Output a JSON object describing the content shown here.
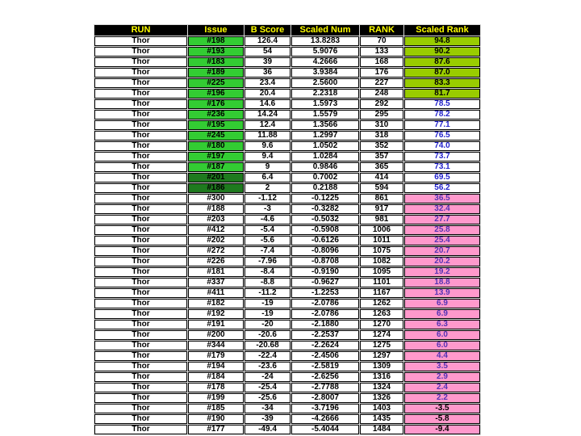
{
  "slide": {
    "background_color": "#ffffff"
  },
  "chart_data": {
    "type": "table",
    "columns": [
      "RUN",
      "Issue",
      "B Score",
      "Scaled Num",
      "RANK",
      "Scaled Rank"
    ],
    "header_style": {
      "background": "#000000",
      "text_color": "#ffff00"
    },
    "colors": {
      "issue_green": "#33cc33",
      "issue_dark_green": "#1e7a1e",
      "scaled_rank_yellow_green": "#99cc00",
      "scaled_rank_pink": "#ff99cc",
      "blue_number_text": "#2222cc",
      "purple_number_text": "#5533b5",
      "default_text": "#000000"
    },
    "rows": [
      {
        "run": "Thor",
        "issue": "#198",
        "b_score": "126.4",
        "scaled_num": "13.8283",
        "rank": "70",
        "scaled_rank": "94.8",
        "issue_style": "g",
        "rank_style": "yg"
      },
      {
        "run": "Thor",
        "issue": "#193",
        "b_score": "54",
        "scaled_num": "5.9076",
        "rank": "133",
        "scaled_rank": "90.2",
        "issue_style": "g",
        "rank_style": "yg"
      },
      {
        "run": "Thor",
        "issue": "#183",
        "b_score": "39",
        "scaled_num": "4.2666",
        "rank": "168",
        "scaled_rank": "87.6",
        "issue_style": "g",
        "rank_style": "yg"
      },
      {
        "run": "Thor",
        "issue": "#189",
        "b_score": "36",
        "scaled_num": "3.9384",
        "rank": "176",
        "scaled_rank": "87.0",
        "issue_style": "g",
        "rank_style": "yg"
      },
      {
        "run": "Thor",
        "issue": "#225",
        "b_score": "23.4",
        "scaled_num": "2.5600",
        "rank": "227",
        "scaled_rank": "83.3",
        "issue_style": "g",
        "rank_style": "yg"
      },
      {
        "run": "Thor",
        "issue": "#196",
        "b_score": "20.4",
        "scaled_num": "2.2318",
        "rank": "248",
        "scaled_rank": "81.7",
        "issue_style": "g",
        "rank_style": "yg"
      },
      {
        "run": "Thor",
        "issue": "#176",
        "b_score": "14.6",
        "scaled_num": "1.5973",
        "rank": "292",
        "scaled_rank": "78.5",
        "issue_style": "g",
        "rank_style": "blue"
      },
      {
        "run": "Thor",
        "issue": "#236",
        "b_score": "14.24",
        "scaled_num": "1.5579",
        "rank": "295",
        "scaled_rank": "78.2",
        "issue_style": "g",
        "rank_style": "blue"
      },
      {
        "run": "Thor",
        "issue": "#195",
        "b_score": "12.4",
        "scaled_num": "1.3566",
        "rank": "310",
        "scaled_rank": "77.1",
        "issue_style": "g",
        "rank_style": "blue"
      },
      {
        "run": "Thor",
        "issue": "#245",
        "b_score": "11.88",
        "scaled_num": "1.2997",
        "rank": "318",
        "scaled_rank": "76.5",
        "issue_style": "g",
        "rank_style": "blue"
      },
      {
        "run": "Thor",
        "issue": "#180",
        "b_score": "9.6",
        "scaled_num": "1.0502",
        "rank": "352",
        "scaled_rank": "74.0",
        "issue_style": "g",
        "rank_style": "blue"
      },
      {
        "run": "Thor",
        "issue": "#197",
        "b_score": "9.4",
        "scaled_num": "1.0284",
        "rank": "357",
        "scaled_rank": "73.7",
        "issue_style": "g",
        "rank_style": "blue"
      },
      {
        "run": "Thor",
        "issue": "#187",
        "b_score": "9",
        "scaled_num": "0.9846",
        "rank": "365",
        "scaled_rank": "73.1",
        "issue_style": "g",
        "rank_style": "blue"
      },
      {
        "run": "Thor",
        "issue": "#201",
        "b_score": "6.4",
        "scaled_num": "0.7002",
        "rank": "414",
        "scaled_rank": "69.5",
        "issue_style": "dg",
        "rank_style": "blue"
      },
      {
        "run": "Thor",
        "issue": "#186",
        "b_score": "2",
        "scaled_num": "0.2188",
        "rank": "594",
        "scaled_rank": "56.2",
        "issue_style": "dg",
        "rank_style": "blue"
      },
      {
        "run": "Thor",
        "issue": "#300",
        "b_score": "-1.12",
        "scaled_num": "-0.1225",
        "rank": "861",
        "scaled_rank": "36.5",
        "issue_style": "",
        "rank_style": "pink"
      },
      {
        "run": "Thor",
        "issue": "#188",
        "b_score": "-3",
        "scaled_num": "-0.3282",
        "rank": "917",
        "scaled_rank": "32.4",
        "issue_style": "",
        "rank_style": "pink"
      },
      {
        "run": "Thor",
        "issue": "#203",
        "b_score": "-4.6",
        "scaled_num": "-0.5032",
        "rank": "981",
        "scaled_rank": "27.7",
        "issue_style": "",
        "rank_style": "pink"
      },
      {
        "run": "Thor",
        "issue": "#412",
        "b_score": "-5.4",
        "scaled_num": "-0.5908",
        "rank": "1006",
        "scaled_rank": "25.8",
        "issue_style": "",
        "rank_style": "pink"
      },
      {
        "run": "Thor",
        "issue": "#202",
        "b_score": "-5.6",
        "scaled_num": "-0.6126",
        "rank": "1011",
        "scaled_rank": "25.4",
        "issue_style": "",
        "rank_style": "pink"
      },
      {
        "run": "Thor",
        "issue": "#272",
        "b_score": "-7.4",
        "scaled_num": "-0.8096",
        "rank": "1075",
        "scaled_rank": "20.7",
        "issue_style": "",
        "rank_style": "pink"
      },
      {
        "run": "Thor",
        "issue": "#226",
        "b_score": "-7.96",
        "scaled_num": "-0.8708",
        "rank": "1082",
        "scaled_rank": "20.2",
        "issue_style": "",
        "rank_style": "pink"
      },
      {
        "run": "Thor",
        "issue": "#181",
        "b_score": "-8.4",
        "scaled_num": "-0.9190",
        "rank": "1095",
        "scaled_rank": "19.2",
        "issue_style": "",
        "rank_style": "pink"
      },
      {
        "run": "Thor",
        "issue": "#337",
        "b_score": "-8.8",
        "scaled_num": "-0.9627",
        "rank": "1101",
        "scaled_rank": "18.8",
        "issue_style": "",
        "rank_style": "pink"
      },
      {
        "run": "Thor",
        "issue": "#411",
        "b_score": "-11.2",
        "scaled_num": "-1.2253",
        "rank": "1167",
        "scaled_rank": "13.9",
        "issue_style": "",
        "rank_style": "pink"
      },
      {
        "run": "Thor",
        "issue": "#182",
        "b_score": "-19",
        "scaled_num": "-2.0786",
        "rank": "1262",
        "scaled_rank": "6.9",
        "issue_style": "",
        "rank_style": "pink"
      },
      {
        "run": "Thor",
        "issue": "#192",
        "b_score": "-19",
        "scaled_num": "-2.0786",
        "rank": "1263",
        "scaled_rank": "6.9",
        "issue_style": "",
        "rank_style": "pink"
      },
      {
        "run": "Thor",
        "issue": "#191",
        "b_score": "-20",
        "scaled_num": "-2.1880",
        "rank": "1270",
        "scaled_rank": "6.3",
        "issue_style": "",
        "rank_style": "pink"
      },
      {
        "run": "Thor",
        "issue": "#200",
        "b_score": "-20.6",
        "scaled_num": "-2.2537",
        "rank": "1274",
        "scaled_rank": "6.0",
        "issue_style": "",
        "rank_style": "pink"
      },
      {
        "run": "Thor",
        "issue": "#344",
        "b_score": "-20.68",
        "scaled_num": "-2.2624",
        "rank": "1275",
        "scaled_rank": "6.0",
        "issue_style": "",
        "rank_style": "pink"
      },
      {
        "run": "Thor",
        "issue": "#179",
        "b_score": "-22.4",
        "scaled_num": "-2.4506",
        "rank": "1297",
        "scaled_rank": "4.4",
        "issue_style": "",
        "rank_style": "pink"
      },
      {
        "run": "Thor",
        "issue": "#194",
        "b_score": "-23.6",
        "scaled_num": "-2.5819",
        "rank": "1309",
        "scaled_rank": "3.5",
        "issue_style": "",
        "rank_style": "pink"
      },
      {
        "run": "Thor",
        "issue": "#184",
        "b_score": "-24",
        "scaled_num": "-2.6256",
        "rank": "1316",
        "scaled_rank": "2.9",
        "issue_style": "",
        "rank_style": "pink"
      },
      {
        "run": "Thor",
        "issue": "#178",
        "b_score": "-25.4",
        "scaled_num": "-2.7788",
        "rank": "1324",
        "scaled_rank": "2.4",
        "issue_style": "",
        "rank_style": "pink"
      },
      {
        "run": "Thor",
        "issue": "#199",
        "b_score": "-25.6",
        "scaled_num": "-2.8007",
        "rank": "1326",
        "scaled_rank": "2.2",
        "issue_style": "",
        "rank_style": "pink"
      },
      {
        "run": "Thor",
        "issue": "#185",
        "b_score": "-34",
        "scaled_num": "-3.7196",
        "rank": "1403",
        "scaled_rank": "-3.5",
        "issue_style": "",
        "rank_style": "pinkblack"
      },
      {
        "run": "Thor",
        "issue": "#190",
        "b_score": "-39",
        "scaled_num": "-4.2666",
        "rank": "1435",
        "scaled_rank": "-5.8",
        "issue_style": "",
        "rank_style": "pinkblack"
      },
      {
        "run": "Thor",
        "issue": "#177",
        "b_score": "-49.4",
        "scaled_num": "-5.4044",
        "rank": "1484",
        "scaled_rank": "-9.4",
        "issue_style": "",
        "rank_style": "pinkblack"
      }
    ]
  }
}
